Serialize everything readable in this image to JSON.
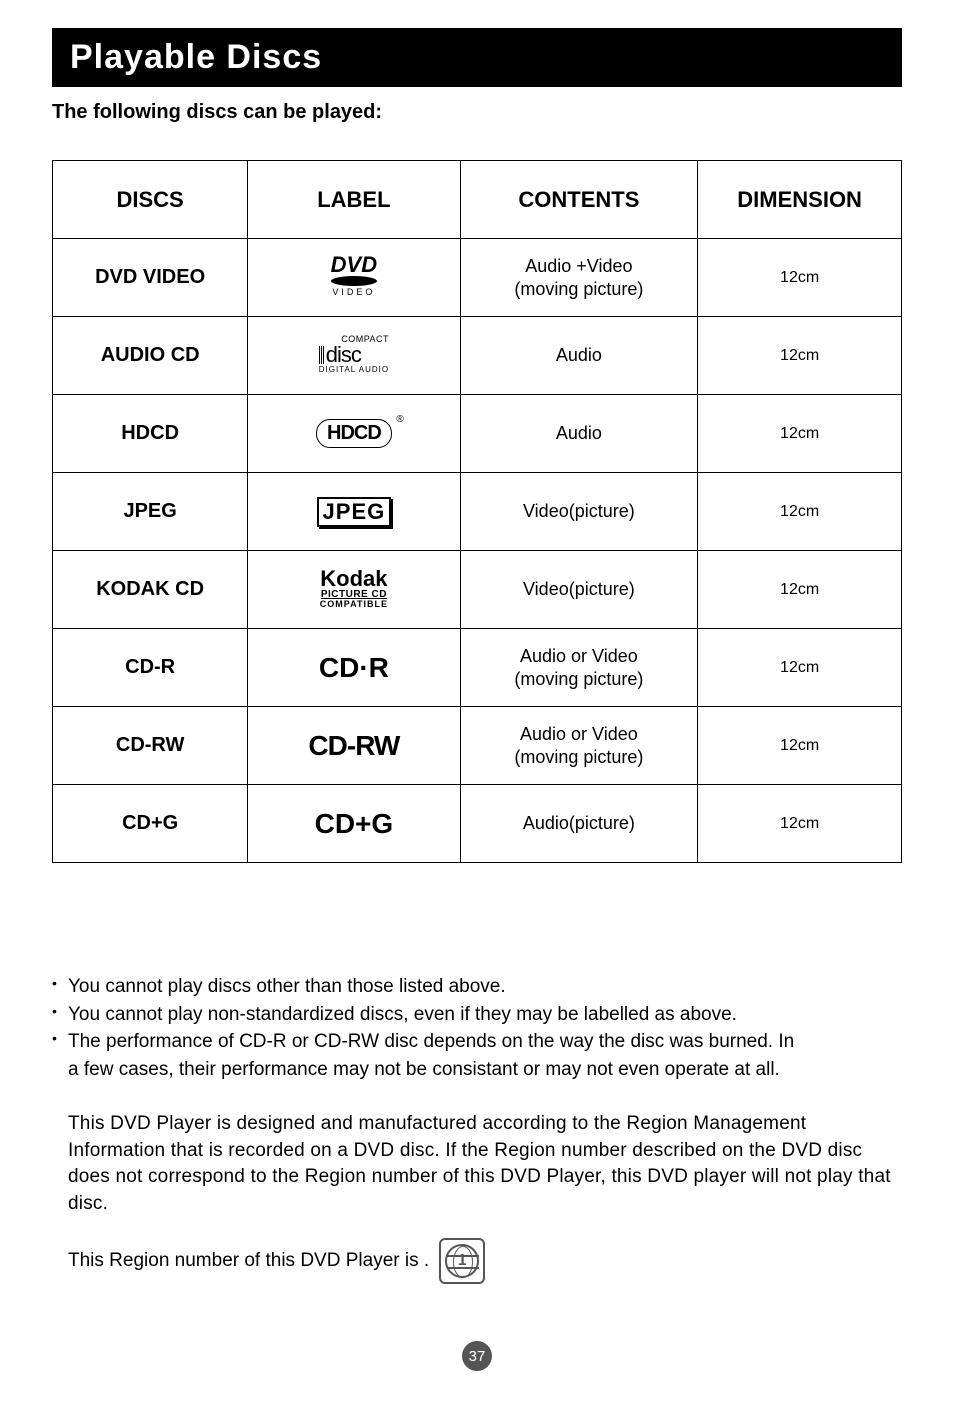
{
  "header": {
    "title": "Playable Discs"
  },
  "subheading": "The following discs can be played:",
  "table": {
    "columns": [
      "DISCS",
      "LABEL",
      "CONTENTS",
      "DIMENSION"
    ],
    "rows": [
      {
        "name": "DVD VIDEO",
        "labelType": "dvd",
        "contents": "Audio +Video\n(moving picture)",
        "dimension": "12cm"
      },
      {
        "name": "AUDIO CD",
        "labelType": "cd",
        "contents": "Audio",
        "dimension": "12cm"
      },
      {
        "name": "HDCD",
        "labelType": "hdcd",
        "contents": "Audio",
        "dimension": "12cm"
      },
      {
        "name": "JPEG",
        "labelType": "jpeg",
        "contents": "Video(picture)",
        "dimension": "12cm"
      },
      {
        "name": "KODAK CD",
        "labelType": "kodak",
        "contents": "Video(picture)",
        "dimension": "12cm"
      },
      {
        "name": "CD-R",
        "labelType": "cdr",
        "contents": "Audio or Video\n(moving picture)",
        "dimension": "12cm"
      },
      {
        "name": "CD-RW",
        "labelType": "cdrw",
        "contents": "Audio or Video\n(moving picture)",
        "dimension": "12cm"
      },
      {
        "name": "CD+G",
        "labelType": "cdg",
        "contents": "Audio(picture)",
        "dimension": "12cm"
      }
    ]
  },
  "labels": {
    "dvd": {
      "line1": "DVD",
      "line2": "VIDEO"
    },
    "cd": {
      "top": "COMPACT",
      "mid": "disc",
      "bot": "DIGITAL AUDIO"
    },
    "hdcd": {
      "text": "HDCD",
      "reg": "®"
    },
    "jpeg": {
      "text": "JPEG"
    },
    "kodak": {
      "k1": "Kodak",
      "k2": "PICTURE CD",
      "k3": "COMPATIBLE"
    },
    "cdr": {
      "text": "CD·R"
    },
    "cdrw": {
      "text": "CD-RW"
    },
    "cdg": {
      "text": "CD+G"
    }
  },
  "notes": [
    "You cannot play discs other than those listed above.",
    "You cannot play non-standardized discs, even if they may be labelled as above.",
    "The performance of CD-R or CD-RW disc depends on the way the disc was burned. In",
    "a few cases, their performance may not be consistant or may not even operate at all."
  ],
  "regionBlock": "This DVD Player is designed and manufactured according to the Region Management Information that is recorded on a DVD disc. If the Region number described on the DVD disc does not correspond to the Region number of this DVD Player, this DVD player will not play that disc.",
  "regionLine": "This Region number of this DVD Player is .",
  "regionNumber": "1",
  "pageNumber": "37",
  "colors": {
    "headerBg": "#000000",
    "headerFg": "#ffffff",
    "pageBg": "#ffffff",
    "textColor": "#000000",
    "borderColor": "#000000",
    "iconGray": "#555555"
  }
}
